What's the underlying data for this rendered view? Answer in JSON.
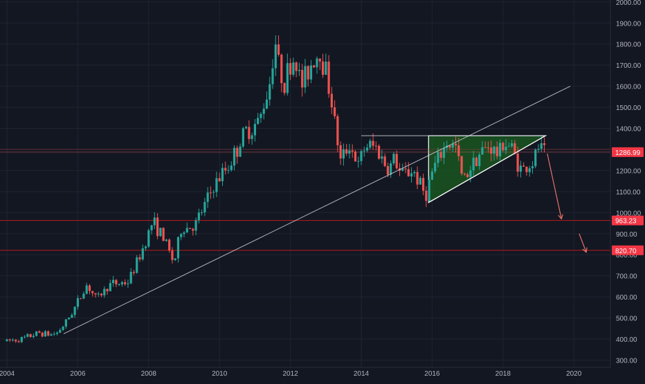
{
  "colors": {
    "background": "#131722",
    "grid": "#1f2433",
    "axis_text": "#b2b5be",
    "up": "#26a69a",
    "down": "#ef5350",
    "trendline": "#d1d4dc",
    "level_line": "#b71c1c",
    "price_tag": "#f23645",
    "triangle_fill": "#1b5e20",
    "triangle_stroke": "#ffffff",
    "arrow": "#e57368"
  },
  "chart_data": {
    "type": "candlestick",
    "title": "",
    "xlabel": "",
    "ylabel": "",
    "x_ticks": [
      "2004",
      "2006",
      "2008",
      "2010",
      "2012",
      "2014",
      "2016",
      "2018",
      "2020"
    ],
    "y_ticks": [
      "300.00",
      "400.00",
      "500.00",
      "600.00",
      "700.00",
      "800.00",
      "900.00",
      "1000.00",
      "1100.00",
      "1200.00",
      "1300.00",
      "1400.00",
      "1500.00",
      "1600.00",
      "1700.00",
      "1800.00",
      "1900.00",
      "2000.00"
    ],
    "ylim": [
      280,
      2000
    ],
    "xlim": [
      2004.0,
      2021.0
    ],
    "grid": true,
    "price_labels": [
      {
        "value": "1286.99",
        "price": 1287
      },
      {
        "value": "963.23",
        "price": 963
      },
      {
        "value": "820.70",
        "price": 821
      }
    ],
    "anchors": [
      [
        2004.0,
        390
      ],
      [
        2004.5,
        400
      ],
      [
        2005.0,
        430
      ],
      [
        2005.3,
        420
      ],
      [
        2005.5,
        430
      ],
      [
        2005.75,
        480
      ],
      [
        2006.0,
        550
      ],
      [
        2006.35,
        660
      ],
      [
        2006.6,
        590
      ],
      [
        2007.0,
        660
      ],
      [
        2007.5,
        670
      ],
      [
        2007.85,
        800
      ],
      [
        2008.2,
        960
      ],
      [
        2008.5,
        880
      ],
      [
        2008.8,
        760
      ],
      [
        2009.0,
        920
      ],
      [
        2009.4,
        940
      ],
      [
        2009.9,
        1120
      ],
      [
        2010.4,
        1240
      ],
      [
        2010.8,
        1380
      ],
      [
        2011.2,
        1430
      ],
      [
        2011.5,
        1620
      ],
      [
        2011.65,
        1830
      ],
      [
        2011.75,
        1700
      ],
      [
        2011.9,
        1620
      ],
      [
        2012.2,
        1740
      ],
      [
        2012.4,
        1600
      ],
      [
        2012.7,
        1720
      ],
      [
        2012.9,
        1760
      ],
      [
        2013.1,
        1670
      ],
      [
        2013.3,
        1470
      ],
      [
        2013.5,
        1240
      ],
      [
        2013.75,
        1330
      ],
      [
        2014.0,
        1220
      ],
      [
        2014.2,
        1320
      ],
      [
        2014.5,
        1310
      ],
      [
        2014.85,
        1200
      ],
      [
        2015.0,
        1260
      ],
      [
        2015.2,
        1180
      ],
      [
        2015.55,
        1200
      ],
      [
        2015.9,
        1080
      ],
      [
        2016.1,
        1200
      ],
      [
        2016.5,
        1330
      ],
      [
        2016.75,
        1310
      ],
      [
        2016.95,
        1150
      ],
      [
        2017.3,
        1260
      ],
      [
        2017.7,
        1320
      ],
      [
        2017.95,
        1270
      ],
      [
        2018.1,
        1340
      ],
      [
        2018.35,
        1300
      ],
      [
        2018.6,
        1200
      ],
      [
        2018.75,
        1215
      ],
      [
        2018.95,
        1240
      ],
      [
        2019.1,
        1320
      ],
      [
        2019.2,
        1287
      ]
    ],
    "annotations": {
      "long_trendline": [
        [
          2005.6,
          425
        ],
        [
          2019.9,
          1600
        ]
      ],
      "resistance_line": [
        [
          2014.0,
          1365
        ],
        [
          2019.2,
          1365
        ]
      ],
      "triangle": [
        [
          2015.9,
          1048
        ],
        [
          2015.9,
          1365
        ],
        [
          2019.2,
          1365
        ]
      ],
      "triangle_support": [
        [
          2015.9,
          1048
        ],
        [
          2019.2,
          1365
        ]
      ],
      "arrows": [
        {
          "from": [
            2019.25,
            1280
          ],
          "to": [
            2019.65,
            970
          ]
        },
        {
          "from": [
            2020.15,
            900
          ],
          "to": [
            2020.35,
            812
          ]
        }
      ]
    }
  }
}
